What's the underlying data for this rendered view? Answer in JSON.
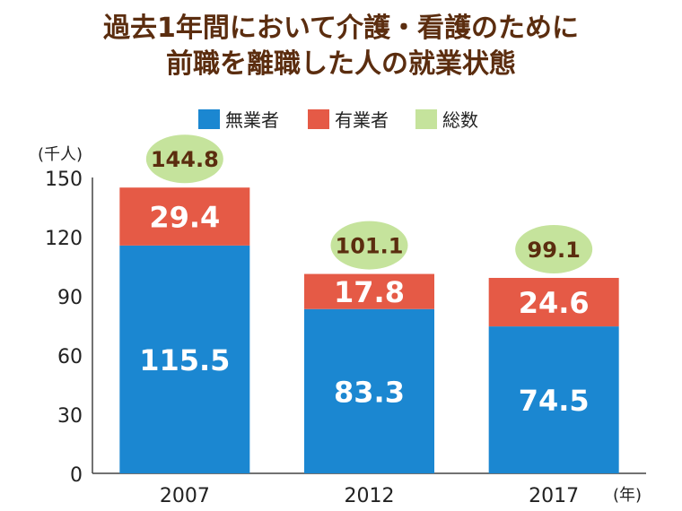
{
  "title_lines": [
    "過去1年間において介護・看護のために",
    "前職を離職した人の就業状態"
  ],
  "chart_data": {
    "type": "bar",
    "stacked": true,
    "categories": [
      "2007",
      "2012",
      "2017"
    ],
    "series": [
      {
        "name": "無業者",
        "values": [
          115.5,
          83.3,
          74.5
        ],
        "color": "#1b87d1"
      },
      {
        "name": "有業者",
        "values": [
          29.4,
          17.8,
          24.6
        ],
        "color": "#e55a46"
      }
    ],
    "totals": {
      "name": "総数",
      "values": [
        144.8,
        101.1,
        99.1
      ],
      "color": "#c5e39c"
    },
    "y_unit": "(千人)",
    "x_unit": "(年)",
    "ylim": [
      0,
      150
    ],
    "yticks": [
      0,
      30,
      60,
      90,
      120,
      150
    ],
    "legend_position": "top",
    "grid": false,
    "value_label_color": "#ffffff",
    "total_label_color": "#5b2d0f"
  }
}
